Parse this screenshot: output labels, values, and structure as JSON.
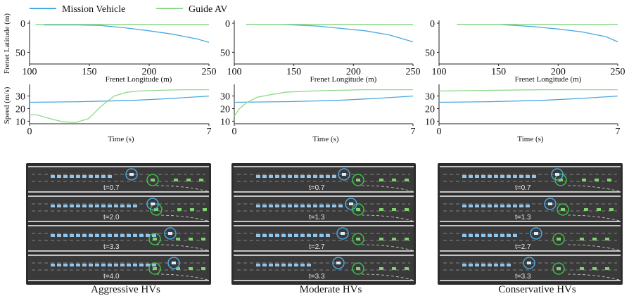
{
  "legend": [
    {
      "name": "Mission Vehicle",
      "color": "#4aa8e0"
    },
    {
      "name": "Guide AV",
      "color": "#8fd98a"
    }
  ],
  "columns": [
    {
      "caption": "Aggressive HVs",
      "snapshot_times": [
        "t=0.7",
        "t=2.0",
        "t=3.3",
        "t=4.0"
      ]
    },
    {
      "caption": "Moderate HVs",
      "snapshot_times": [
        "t=0.7",
        "t=1.3",
        "t=2.7",
        "t=3.3"
      ]
    },
    {
      "caption": "Conservative HVs",
      "snapshot_times": [
        "t=0.7",
        "t=1.3",
        "t=2.7",
        "t=3.3"
      ]
    }
  ],
  "chart_data": [
    {
      "type": "line",
      "panel": "frenet",
      "scenario": "Aggressive HVs",
      "xlabel": "Frenet Longitude (m)",
      "ylabel": "Frenet Latitude (m)",
      "xlim": [
        100,
        250
      ],
      "ylim": [
        0,
        70
      ],
      "y_inverted": true,
      "xticks": [
        "100",
        "150",
        "200",
        "250"
      ],
      "yticks": [
        "0",
        "50"
      ],
      "series": [
        {
          "name": "Mission Vehicle",
          "x": [
            112,
            140,
            160,
            180,
            200,
            220,
            240,
            250
          ],
          "y": [
            3,
            3,
            4,
            8,
            13,
            19,
            27,
            33
          ]
        },
        {
          "name": "Guide AV",
          "x": [
            105,
            150,
            200,
            250
          ],
          "y": [
            2,
            2,
            2,
            2
          ]
        }
      ]
    },
    {
      "type": "line",
      "panel": "frenet",
      "scenario": "Moderate HVs",
      "xlabel": "Frenet Longitude (m)",
      "ylabel": "",
      "xlim": [
        100,
        250
      ],
      "ylim": [
        0,
        70
      ],
      "y_inverted": true,
      "xticks": [
        "100",
        "150",
        "200",
        "250"
      ],
      "yticks": [
        "0",
        "50"
      ],
      "series": [
        {
          "name": "Mission Vehicle",
          "x": [
            110,
            140,
            170,
            190,
            210,
            230,
            250
          ],
          "y": [
            2,
            2,
            5,
            9,
            13,
            20,
            32
          ]
        },
        {
          "name": "Guide AV",
          "x": [
            110,
            150,
            200,
            250
          ],
          "y": [
            2,
            2,
            2,
            2
          ]
        }
      ]
    },
    {
      "type": "line",
      "panel": "frenet",
      "scenario": "Conservative HVs",
      "xlabel": "Frenet Longitude (m)",
      "ylabel": "",
      "xlim": [
        100,
        250
      ],
      "ylim": [
        0,
        70
      ],
      "y_inverted": true,
      "xticks": [
        "100",
        "150",
        "200",
        "250"
      ],
      "yticks": [
        "0",
        "50"
      ],
      "series": [
        {
          "name": "Mission Vehicle",
          "x": [
            115,
            150,
            180,
            200,
            220,
            240,
            250
          ],
          "y": [
            2,
            2,
            6,
            10,
            15,
            23,
            32
          ]
        },
        {
          "name": "Guide AV",
          "x": [
            115,
            150,
            200,
            250
          ],
          "y": [
            2,
            2,
            2,
            2
          ]
        }
      ]
    },
    {
      "type": "line",
      "panel": "speed",
      "scenario": "Aggressive HVs",
      "xlabel": "Time (s)",
      "ylabel": "Speed (m/s)",
      "xlim": [
        0,
        7
      ],
      "ylim": [
        8,
        37
      ],
      "xticks": [
        "0",
        "7"
      ],
      "yticks": [
        "10",
        "20",
        "30"
      ],
      "series": [
        {
          "name": "Mission Vehicle",
          "x": [
            0,
            2,
            4,
            5.5,
            7
          ],
          "y": [
            25,
            25.5,
            26.5,
            28,
            30
          ]
        },
        {
          "name": "Guide AV",
          "x": [
            0,
            0.3,
            0.8,
            1.3,
            1.8,
            2.3,
            2.8,
            3.3,
            3.8,
            4.3,
            5,
            6,
            7
          ],
          "y": [
            15,
            15,
            12,
            9.5,
            9,
            12,
            22,
            30,
            33,
            34,
            34.5,
            35,
            35
          ]
        }
      ]
    },
    {
      "type": "line",
      "panel": "speed",
      "scenario": "Moderate HVs",
      "xlabel": "Time (s)",
      "ylabel": "",
      "xlim": [
        0,
        7
      ],
      "ylim": [
        8,
        37
      ],
      "xticks": [
        "0",
        "7"
      ],
      "yticks": [
        "10",
        "20",
        "30"
      ],
      "series": [
        {
          "name": "Mission Vehicle",
          "x": [
            0,
            2,
            4,
            5.5,
            7
          ],
          "y": [
            25,
            25.5,
            26.5,
            28,
            30
          ]
        },
        {
          "name": "Guide AV",
          "x": [
            0,
            0.2,
            0.5,
            0.9,
            1.4,
            2,
            3,
            4,
            5,
            7
          ],
          "y": [
            14,
            20,
            25,
            29,
            31,
            33,
            34,
            34.5,
            35,
            35
          ]
        }
      ]
    },
    {
      "type": "line",
      "panel": "speed",
      "scenario": "Conservative HVs",
      "xlabel": "Time (s)",
      "ylabel": "",
      "xlim": [
        0,
        7
      ],
      "ylim": [
        8,
        37
      ],
      "xticks": [
        "0",
        "7"
      ],
      "yticks": [
        "10",
        "20",
        "30"
      ],
      "series": [
        {
          "name": "Mission Vehicle",
          "x": [
            0,
            2,
            4,
            5.5,
            7
          ],
          "y": [
            25,
            25.5,
            26.5,
            28,
            30
          ]
        },
        {
          "name": "Guide AV",
          "x": [
            0,
            2,
            4,
            7
          ],
          "y": [
            34,
            34.5,
            35,
            35
          ]
        }
      ]
    }
  ]
}
